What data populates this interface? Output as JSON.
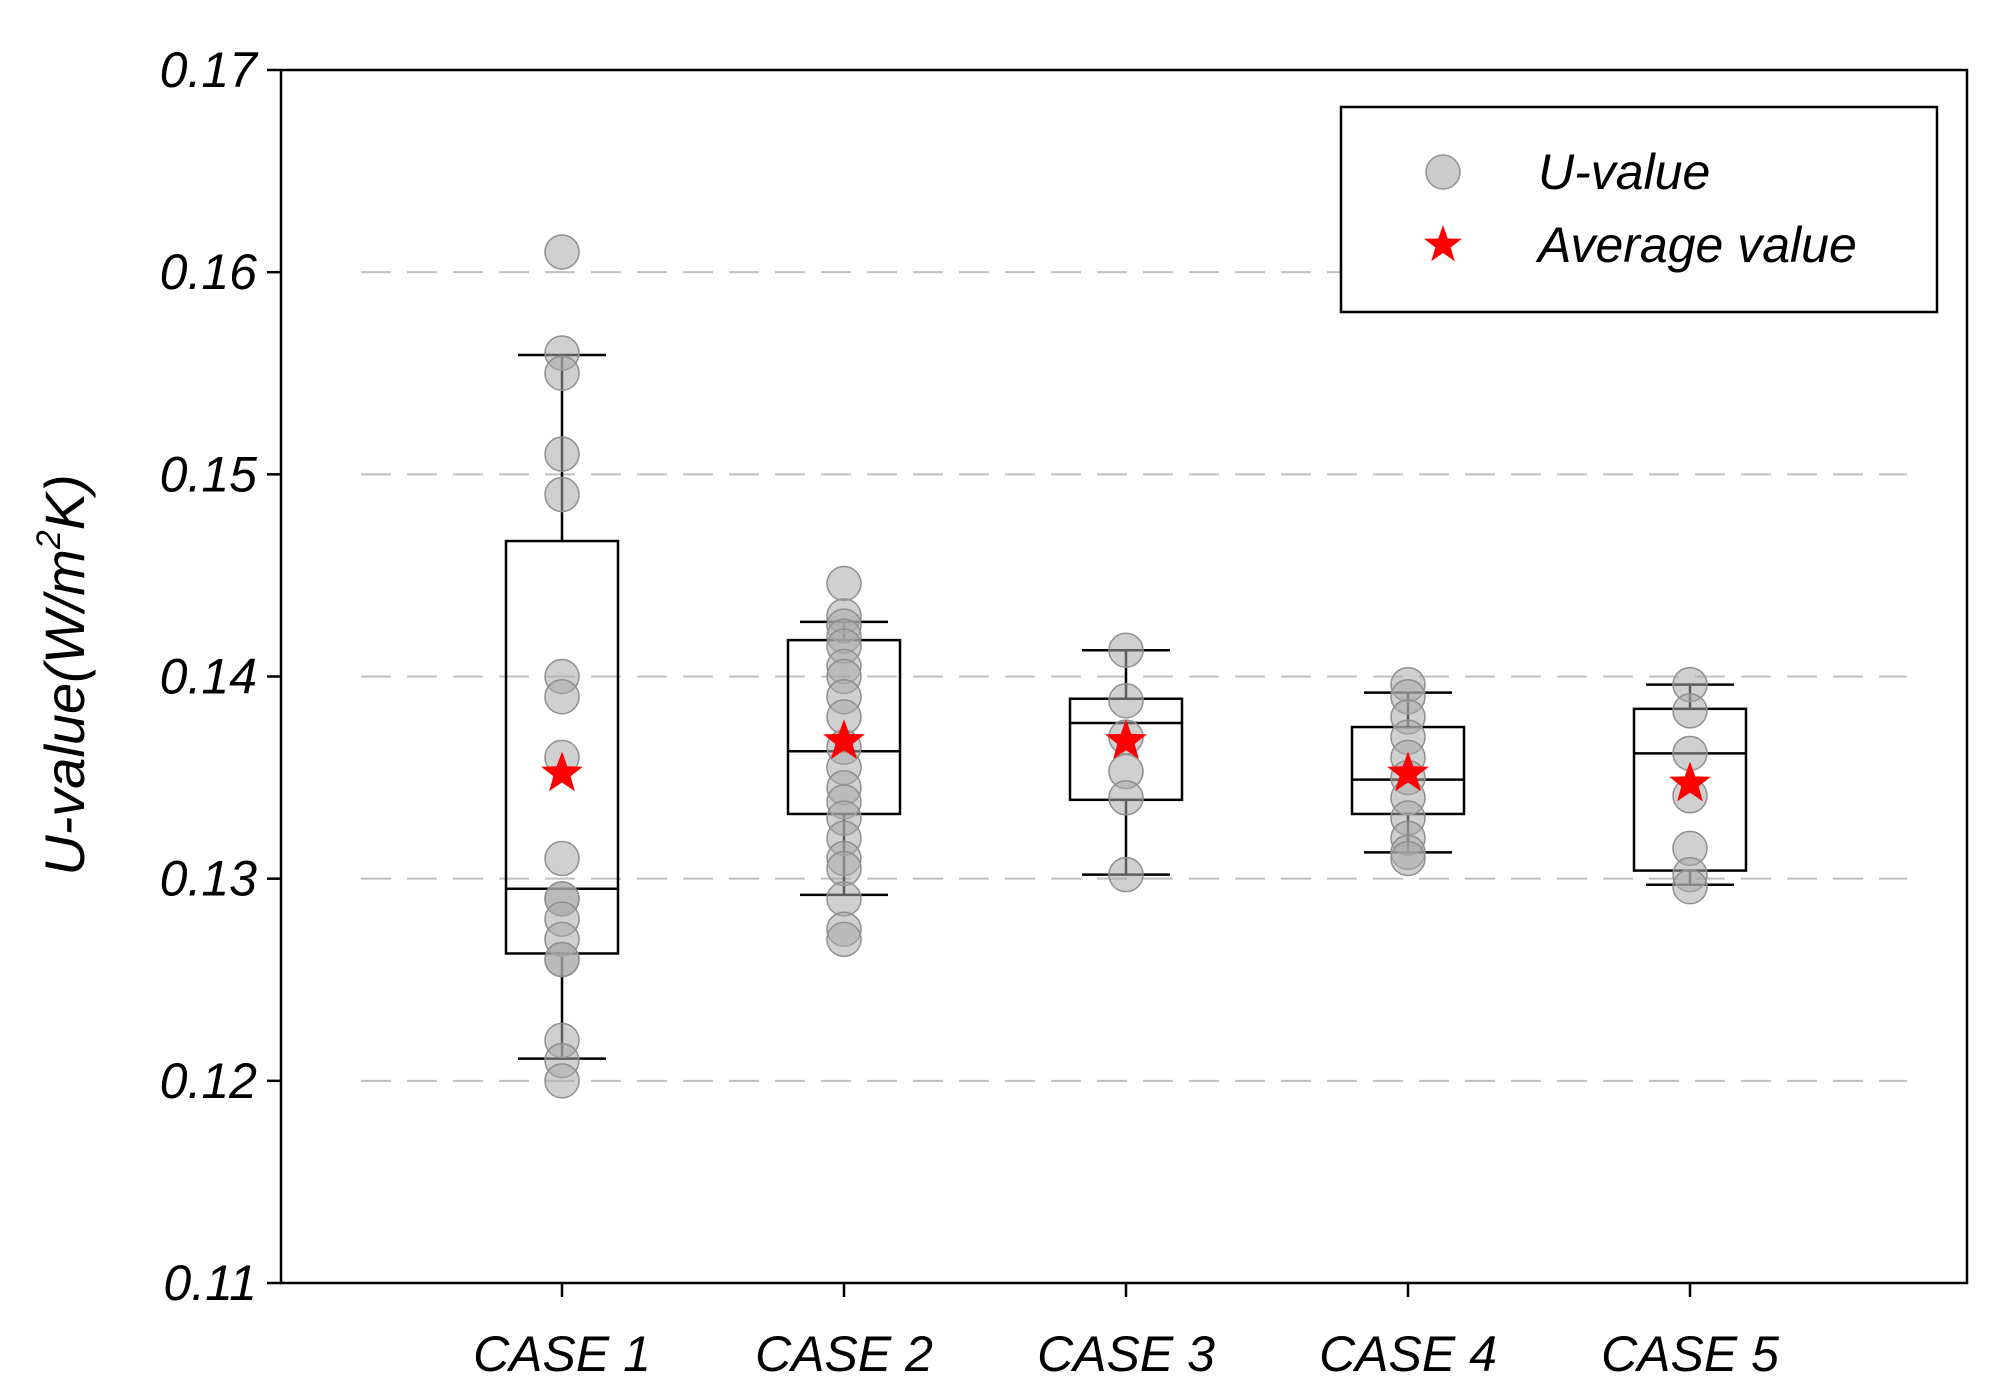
{
  "chart_data": {
    "type": "box",
    "ylabel_main": "U-value(W/m",
    "ylabel_sup": "2",
    "ylabel_end": "K)",
    "ylim": [
      0.11,
      0.17
    ],
    "yticks": [
      {
        "value": 0.11,
        "label": "0.11"
      },
      {
        "value": 0.12,
        "label": "0.12"
      },
      {
        "value": 0.13,
        "label": "0.13"
      },
      {
        "value": 0.14,
        "label": "0.14"
      },
      {
        "value": 0.15,
        "label": "0.15"
      },
      {
        "value": 0.16,
        "label": "0.16"
      },
      {
        "value": 0.17,
        "label": "0.17"
      }
    ],
    "gridlines": [
      0.12,
      0.13,
      0.14,
      0.15,
      0.16
    ],
    "grid": "horizontal-dashed",
    "legend_position": "top-right",
    "legend": {
      "points_label": "U-value",
      "mean_label": "Average value"
    },
    "colors": {
      "points": "#a9a9a9",
      "mean": "#ff0000",
      "box": "#000000",
      "grid": "#c0c0c0"
    },
    "categories": [
      "CASE 1",
      "CASE 2",
      "CASE 3",
      "CASE 4",
      "CASE 5"
    ],
    "series": [
      {
        "category": "CASE 1",
        "points": [
          0.161,
          0.156,
          0.155,
          0.151,
          0.149,
          0.14,
          0.139,
          0.136,
          0.131,
          0.129,
          0.129,
          0.128,
          0.127,
          0.126,
          0.126,
          0.122,
          0.121,
          0.12
        ],
        "whisker_low": 0.1211,
        "q1": 0.1263,
        "median": 0.1295,
        "q3": 0.1467,
        "whisker_high": 0.1559,
        "mean": 0.1352
      },
      {
        "category": "CASE 2",
        "points": [
          0.1446,
          0.143,
          0.1425,
          0.142,
          0.1415,
          0.1405,
          0.14,
          0.139,
          0.138,
          0.1365,
          0.1355,
          0.1345,
          0.1338,
          0.133,
          0.132,
          0.131,
          0.1305,
          0.129,
          0.1275,
          0.127
        ],
        "whisker_low": 0.1292,
        "q1": 0.1332,
        "median": 0.1363,
        "q3": 0.1418,
        "whisker_high": 0.1427,
        "mean": 0.1368
      },
      {
        "category": "CASE 3",
        "points": [
          0.1413,
          0.1388,
          0.137,
          0.1353,
          0.134,
          0.1302
        ],
        "whisker_low": 0.1302,
        "q1": 0.1339,
        "median": 0.1377,
        "q3": 0.1389,
        "whisker_high": 0.1413,
        "mean": 0.1368
      },
      {
        "category": "CASE 4",
        "points": [
          0.1396,
          0.139,
          0.138,
          0.137,
          0.136,
          0.135,
          0.134,
          0.133,
          0.132,
          0.1313,
          0.131
        ],
        "whisker_low": 0.1313,
        "q1": 0.1332,
        "median": 0.1349,
        "q3": 0.1375,
        "whisker_high": 0.1392,
        "mean": 0.1352
      },
      {
        "category": "CASE 5",
        "points": [
          0.1396,
          0.1383,
          0.1362,
          0.1341,
          0.1315,
          0.1302,
          0.1296
        ],
        "whisker_low": 0.1297,
        "q1": 0.1304,
        "median": 0.1362,
        "q3": 0.1384,
        "whisker_high": 0.1396,
        "mean": 0.1347
      }
    ]
  }
}
